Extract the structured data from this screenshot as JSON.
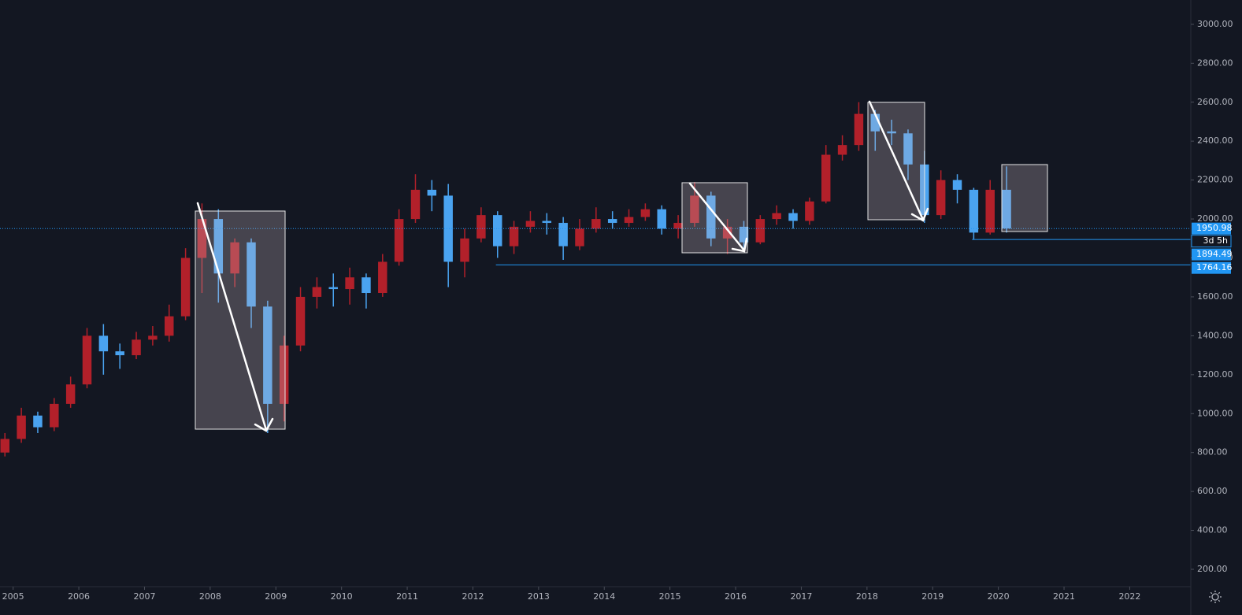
{
  "chart_data": {
    "type": "candlestick",
    "up_color": "#b2202a",
    "down_color": "#4aa3f0",
    "xlim": [
      2004.8,
      2022.93
    ],
    "ylim": [
      111,
      3125
    ],
    "xticks": [
      2005,
      2006,
      2007,
      2008,
      2009,
      2010,
      2011,
      2012,
      2013,
      2014,
      2015,
      2016,
      2017,
      2018,
      2019,
      2020,
      2021,
      2022
    ],
    "yticks": [
      {
        "value": 200,
        "label": "200.00"
      },
      {
        "value": 400,
        "label": "400.00"
      },
      {
        "value": 600,
        "label": "600.00"
      },
      {
        "value": 800,
        "label": "800.00"
      },
      {
        "value": 1000,
        "label": "1000.00"
      },
      {
        "value": 1200,
        "label": "1200.00"
      },
      {
        "value": 1400,
        "label": "1400.00"
      },
      {
        "value": 1600,
        "label": "1600.00"
      },
      {
        "value": 1800,
        "label": "1800.00"
      },
      {
        "value": 2000,
        "label": "2000.00"
      },
      {
        "value": 2200,
        "label": "2200.00"
      },
      {
        "value": 2400,
        "label": "2400.00"
      },
      {
        "value": 2600,
        "label": "2600.00"
      },
      {
        "value": 2800,
        "label": "2800.00"
      },
      {
        "value": 3000,
        "label": "3000.00"
      }
    ],
    "x": [
      2004.875,
      2005.125,
      2005.375,
      2005.625,
      2005.875,
      2006.125,
      2006.375,
      2006.625,
      2006.875,
      2007.125,
      2007.375,
      2007.625,
      2007.875,
      2008.125,
      2008.375,
      2008.625,
      2008.875,
      2009.125,
      2009.375,
      2009.625,
      2009.875,
      2010.125,
      2010.375,
      2010.625,
      2010.875,
      2011.125,
      2011.375,
      2011.625,
      2011.875,
      2012.125,
      2012.375,
      2012.625,
      2012.875,
      2013.125,
      2013.375,
      2013.625,
      2013.875,
      2014.125,
      2014.375,
      2014.625,
      2014.875,
      2015.125,
      2015.375,
      2015.625,
      2015.875,
      2016.125,
      2016.375,
      2016.625,
      2016.875,
      2017.125,
      2017.375,
      2017.625,
      2017.875,
      2018.125,
      2018.375,
      2018.625,
      2018.875,
      2019.125,
      2019.375,
      2019.625,
      2019.875,
      2020.125
    ],
    "open": [
      800,
      870,
      990,
      930,
      1050,
      1150,
      1400,
      1320,
      1300,
      1380,
      1400,
      1500,
      1800,
      2000,
      1720,
      1880,
      1550,
      1050,
      1350,
      1600,
      1650,
      1640,
      1700,
      1620,
      1780,
      2000,
      2150,
      2120,
      1780,
      1900,
      2020,
      1860,
      1960,
      1990,
      1980,
      1860,
      1950,
      2000,
      1980,
      2010,
      2050,
      1950,
      1980,
      2120,
      1900,
      1960,
      1880,
      2000,
      2030,
      1990,
      2090,
      2330,
      2380,
      2540,
      2450,
      2440,
      2280,
      2020,
      2200,
      2150,
      1930,
      2150
    ],
    "high": [
      900,
      1030,
      1010,
      1080,
      1190,
      1440,
      1460,
      1360,
      1420,
      1450,
      1560,
      1850,
      2080,
      2050,
      1900,
      1900,
      1580,
      1400,
      1650,
      1700,
      1720,
      1750,
      1720,
      1820,
      2050,
      2230,
      2200,
      2180,
      1950,
      2060,
      2040,
      1990,
      2040,
      2030,
      2010,
      2000,
      2060,
      2040,
      2050,
      2080,
      2070,
      2020,
      2190,
      2140,
      2000,
      1990,
      2020,
      2070,
      2050,
      2110,
      2380,
      2430,
      2600,
      2560,
      2510,
      2460,
      2350,
      2250,
      2230,
      2160,
      2200,
      2270
    ],
    "low": [
      780,
      850,
      900,
      910,
      1030,
      1130,
      1200,
      1230,
      1280,
      1350,
      1370,
      1480,
      1620,
      1570,
      1650,
      1440,
      900,
      960,
      1320,
      1540,
      1550,
      1560,
      1540,
      1600,
      1760,
      1980,
      2040,
      1650,
      1700,
      1880,
      1800,
      1820,
      1930,
      1920,
      1790,
      1840,
      1930,
      1950,
      1960,
      1990,
      1920,
      1900,
      1960,
      1860,
      1820,
      1840,
      1870,
      1970,
      1950,
      1970,
      2080,
      2300,
      2350,
      2350,
      2380,
      2200,
      1980,
      2000,
      2080,
      1894,
      1920,
      1930
    ],
    "close": [
      870,
      990,
      930,
      1050,
      1150,
      1400,
      1320,
      1300,
      1380,
      1400,
      1500,
      1800,
      2000,
      1720,
      1880,
      1550,
      1050,
      1350,
      1600,
      1650,
      1640,
      1700,
      1620,
      1780,
      2000,
      2150,
      2120,
      1780,
      1900,
      2020,
      1860,
      1960,
      1990,
      1980,
      1860,
      1950,
      2000,
      1980,
      2010,
      2050,
      1950,
      1980,
      2120,
      1900,
      1960,
      1880,
      2000,
      2030,
      1990,
      2090,
      2330,
      2380,
      2540,
      2450,
      2440,
      2280,
      2020,
      2200,
      2150,
      1930,
      2150,
      1950.98
    ],
    "price_lines": [
      {
        "value": 1950.98,
        "color": "#2196f3",
        "dash": true,
        "start": 2004.8
      },
      {
        "value": 1894.49,
        "color": "#2196f3",
        "dash": false,
        "start": 2019.6
      },
      {
        "value": 1764.16,
        "color": "#2196f3",
        "dash": false,
        "start": 2012.35
      }
    ],
    "countdown": "3d 5h"
  }
}
